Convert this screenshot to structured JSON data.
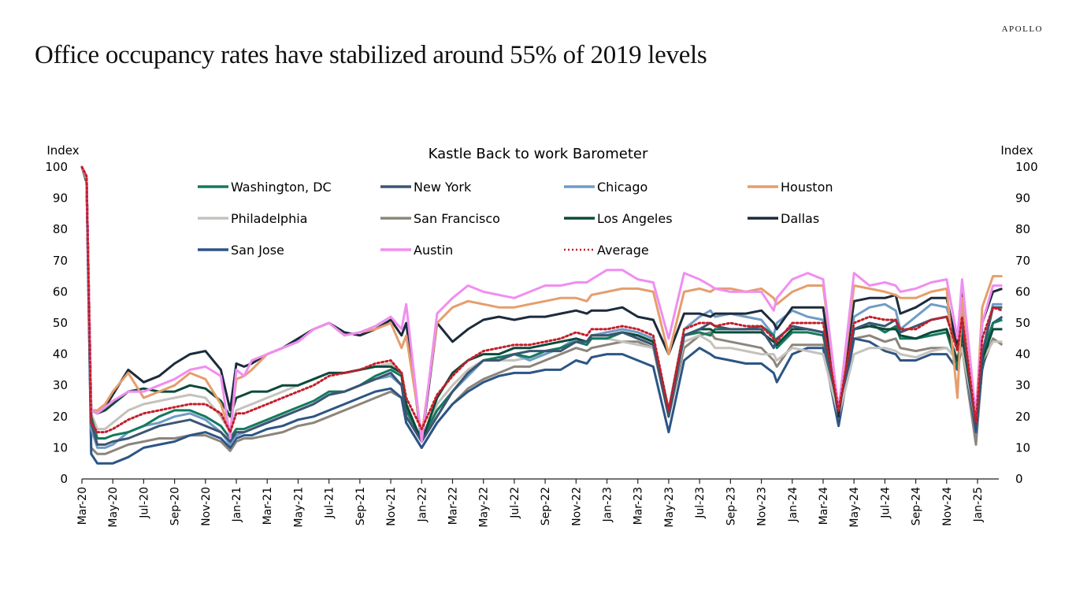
{
  "brand": "APOLLO",
  "headline": "Office occupancy rates have stabilized around 55% of 2019 levels",
  "chart_data": {
    "type": "line",
    "title": "Kastle Back to work Barometer",
    "ylabel_left": "Index",
    "ylabel_right": "Index",
    "xlabel": "",
    "ylim": [
      0,
      100
    ],
    "yticks": [
      0,
      10,
      20,
      30,
      40,
      50,
      60,
      70,
      80,
      90,
      100
    ],
    "xticks": [
      "Mar-20",
      "May-20",
      "Jul-20",
      "Sep-20",
      "Nov-20",
      "Jan-21",
      "Mar-21",
      "May-21",
      "Jul-21",
      "Sep-21",
      "Nov-21",
      "Jan-22",
      "Mar-22",
      "May-22",
      "Jul-22",
      "Sep-22",
      "Nov-22",
      "Jan-23",
      "Mar-23",
      "May-23",
      "Jul-23",
      "Sep-23",
      "Nov-23",
      "Jan-24",
      "Mar-24",
      "May-24",
      "Jul-24",
      "Sep-24",
      "Nov-24",
      "Jan-25"
    ],
    "x_unit": "months since Mar-2020",
    "x": [
      0,
      0.3,
      0.6,
      1,
      1.5,
      2,
      3,
      4,
      5,
      6,
      7,
      8,
      9,
      9.6,
      10,
      10.5,
      11,
      12,
      13,
      14,
      15,
      16,
      17,
      18,
      19,
      20,
      20.7,
      21,
      22,
      23,
      24,
      25,
      26,
      27,
      28,
      29,
      30,
      31,
      32,
      32.7,
      33,
      34,
      35,
      36,
      37,
      38,
      39,
      40,
      40.7,
      41,
      42,
      43,
      44,
      44.8,
      45,
      46,
      47,
      48,
      49,
      50,
      51,
      52,
      52.7,
      53,
      54,
      55,
      56,
      56.7,
      57,
      57.9,
      58.3,
      59,
      59.6
    ],
    "legend_position": "top",
    "series": [
      {
        "name": "Washington, DC",
        "color": "#137a5d",
        "dash": false,
        "values": [
          100,
          97,
          20,
          13,
          13,
          14,
          15,
          17,
          20,
          22,
          22,
          20,
          17,
          13,
          16,
          16,
          17,
          19,
          21,
          23,
          25,
          28,
          28,
          30,
          33,
          35,
          33,
          22,
          13,
          22,
          28,
          34,
          38,
          39,
          40,
          39,
          41,
          42,
          44,
          43,
          45,
          45,
          47,
          46,
          44,
          20,
          46,
          47,
          46,
          48,
          48,
          48,
          49,
          46,
          42,
          47,
          47,
          46,
          22,
          48,
          50,
          47,
          49,
          45,
          45,
          46,
          47,
          36,
          47,
          20,
          40,
          50,
          51
        ]
      },
      {
        "name": "New York",
        "color": "#3c5573",
        "dash": false,
        "values": [
          100,
          96,
          18,
          11,
          11,
          12,
          13,
          15,
          17,
          18,
          19,
          17,
          15,
          12,
          15,
          15,
          16,
          18,
          20,
          22,
          24,
          27,
          28,
          30,
          32,
          34,
          30,
          20,
          12,
          20,
          28,
          34,
          38,
          38,
          40,
          41,
          41,
          41,
          44,
          44,
          46,
          46,
          47,
          45,
          43,
          20,
          46,
          48,
          50,
          49,
          48,
          48,
          48,
          42,
          45,
          49,
          48,
          47,
          22,
          48,
          50,
          49,
          51,
          47,
          49,
          51,
          52,
          42,
          50,
          18,
          40,
          55,
          55
        ]
      },
      {
        "name": "Chicago",
        "color": "#6f9bc6",
        "dash": false,
        "values": [
          100,
          96,
          16,
          10,
          10,
          11,
          15,
          17,
          18,
          20,
          21,
          19,
          15,
          11,
          14,
          15,
          16,
          18,
          20,
          22,
          24,
          27,
          28,
          30,
          32,
          33,
          30,
          22,
          12,
          22,
          28,
          33,
          38,
          39,
          40,
          38,
          40,
          42,
          45,
          44,
          46,
          47,
          48,
          47,
          45,
          22,
          48,
          52,
          54,
          52,
          53,
          52,
          51,
          46,
          50,
          54,
          52,
          51,
          22,
          52,
          55,
          56,
          54,
          48,
          52,
          56,
          55,
          43,
          54,
          18,
          40,
          56,
          56
        ]
      },
      {
        "name": "Houston",
        "color": "#e59e6d",
        "dash": false,
        "values": [
          100,
          96,
          22,
          22,
          24,
          28,
          34,
          26,
          28,
          30,
          34,
          32,
          24,
          15,
          32,
          33,
          35,
          40,
          42,
          44,
          48,
          50,
          46,
          47,
          48,
          50,
          42,
          46,
          14,
          50,
          55,
          57,
          56,
          55,
          55,
          56,
          57,
          58,
          58,
          57,
          59,
          60,
          61,
          61,
          60,
          40,
          60,
          61,
          60,
          61,
          61,
          60,
          61,
          58,
          56,
          60,
          62,
          62,
          22,
          62,
          61,
          60,
          59,
          58,
          58,
          60,
          61,
          26,
          58,
          20,
          55,
          65,
          65
        ]
      },
      {
        "name": "Philadelphia",
        "color": "#c5c2bc",
        "dash": false,
        "values": [
          100,
          96,
          21,
          16,
          16,
          18,
          22,
          24,
          25,
          26,
          27,
          26,
          20,
          15,
          22,
          23,
          24,
          26,
          28,
          30,
          32,
          34,
          34,
          35,
          36,
          37,
          34,
          24,
          12,
          24,
          30,
          35,
          38,
          38,
          38,
          39,
          40,
          42,
          44,
          43,
          45,
          45,
          44,
          43,
          42,
          22,
          44,
          46,
          44,
          42,
          42,
          41,
          40,
          40,
          38,
          42,
          41,
          40,
          20,
          40,
          42,
          42,
          41,
          40,
          39,
          41,
          42,
          38,
          42,
          18,
          38,
          44,
          44
        ]
      },
      {
        "name": "San Francisco",
        "color": "#8c857c",
        "dash": false,
        "values": [
          100,
          95,
          10,
          8,
          8,
          9,
          11,
          12,
          13,
          13,
          14,
          14,
          12,
          9,
          12,
          13,
          13,
          14,
          15,
          17,
          18,
          20,
          22,
          24,
          26,
          28,
          26,
          18,
          10,
          18,
          24,
          29,
          32,
          34,
          36,
          36,
          38,
          40,
          42,
          41,
          42,
          43,
          44,
          44,
          42,
          20,
          42,
          46,
          47,
          45,
          44,
          43,
          42,
          38,
          36,
          43,
          43,
          43,
          18,
          45,
          46,
          44,
          45,
          42,
          41,
          42,
          42,
          38,
          42,
          11,
          36,
          45,
          43
        ]
      },
      {
        "name": "Los Angeles",
        "color": "#0d4a3a",
        "dash": false,
        "values": [
          100,
          96,
          22,
          21,
          22,
          24,
          28,
          29,
          28,
          28,
          30,
          29,
          25,
          20,
          26,
          27,
          28,
          28,
          30,
          30,
          32,
          34,
          34,
          35,
          36,
          36,
          34,
          24,
          12,
          26,
          34,
          38,
          40,
          40,
          42,
          42,
          43,
          44,
          45,
          44,
          46,
          46,
          47,
          46,
          44,
          22,
          46,
          48,
          48,
          47,
          47,
          47,
          47,
          44,
          43,
          48,
          48,
          47,
          22,
          48,
          49,
          48,
          48,
          46,
          45,
          47,
          48,
          38,
          46,
          18,
          38,
          48,
          48
        ]
      },
      {
        "name": "Dallas",
        "color": "#1c2b3d",
        "dash": false,
        "values": [
          100,
          96,
          22,
          21,
          23,
          27,
          35,
          31,
          33,
          37,
          40,
          41,
          35,
          22,
          37,
          36,
          37,
          40,
          42,
          45,
          48,
          50,
          47,
          46,
          48,
          51,
          46,
          50,
          12,
          50,
          44,
          48,
          51,
          52,
          51,
          52,
          52,
          53,
          54,
          53,
          54,
          54,
          55,
          52,
          51,
          40,
          53,
          53,
          52,
          53,
          53,
          53,
          54,
          50,
          48,
          55,
          55,
          55,
          20,
          57,
          58,
          58,
          59,
          53,
          55,
          58,
          58,
          42,
          60,
          18,
          50,
          60,
          61
        ]
      },
      {
        "name": "San Jose",
        "color": "#2c5585",
        "dash": false,
        "values": [
          100,
          95,
          8,
          5,
          5,
          5,
          7,
          10,
          11,
          12,
          14,
          15,
          13,
          10,
          13,
          14,
          14,
          16,
          17,
          19,
          20,
          22,
          24,
          26,
          28,
          29,
          26,
          18,
          10,
          18,
          24,
          28,
          31,
          33,
          34,
          34,
          35,
          35,
          38,
          37,
          39,
          40,
          40,
          38,
          36,
          15,
          38,
          42,
          40,
          39,
          38,
          37,
          37,
          34,
          31,
          40,
          42,
          42,
          17,
          45,
          44,
          41,
          40,
          38,
          38,
          40,
          40,
          35,
          43,
          15,
          35,
          50,
          52
        ]
      },
      {
        "name": "Austin",
        "color": "#f08ef0",
        "dash": false,
        "values": [
          100,
          97,
          22,
          21,
          23,
          25,
          28,
          28,
          30,
          32,
          35,
          36,
          33,
          13,
          35,
          33,
          38,
          40,
          42,
          44,
          48,
          50,
          46,
          47,
          49,
          52,
          48,
          56,
          12,
          53,
          58,
          62,
          60,
          59,
          58,
          60,
          62,
          62,
          63,
          63,
          64,
          67,
          67,
          64,
          63,
          45,
          66,
          64,
          62,
          61,
          60,
          60,
          60,
          54,
          58,
          64,
          66,
          64,
          22,
          66,
          62,
          63,
          62,
          60,
          61,
          63,
          64,
          45,
          64,
          20,
          50,
          62,
          62
        ]
      },
      {
        "name": "Average",
        "color": "#c41e2a",
        "dash": true,
        "values": [
          100,
          97,
          18,
          15,
          15,
          16,
          19,
          21,
          22,
          23,
          24,
          24,
          21,
          15,
          21,
          21,
          22,
          24,
          26,
          28,
          30,
          33,
          34,
          35,
          37,
          38,
          34,
          26,
          16,
          27,
          33,
          38,
          41,
          42,
          43,
          43,
          44,
          45,
          47,
          46,
          48,
          48,
          49,
          48,
          46,
          22,
          48,
          50,
          50,
          49,
          50,
          49,
          49,
          45,
          44,
          50,
          50,
          50,
          22,
          50,
          52,
          51,
          51,
          48,
          48,
          51,
          52,
          41,
          52,
          18,
          45,
          55,
          54
        ]
      }
    ]
  }
}
